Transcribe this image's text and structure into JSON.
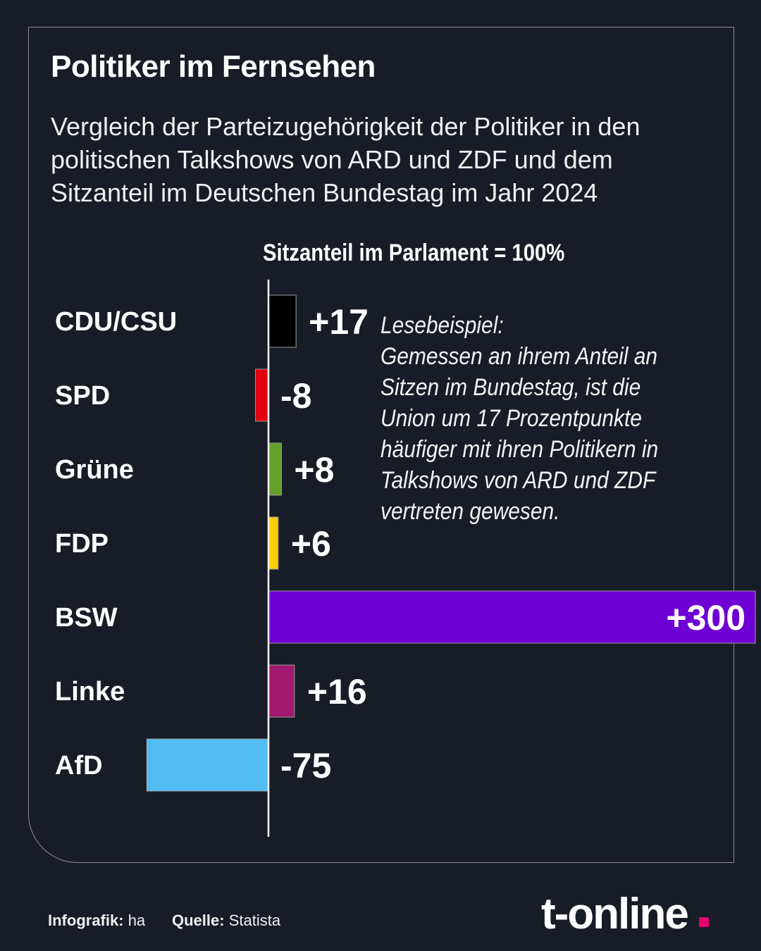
{
  "header": {
    "title": "Politiker im Fernsehen",
    "subtitle": "Vergleich der Parteizugehörigkeit der Politiker in den politischen Talkshows von ARD und ZDF und dem Sitzanteil im Deutschen Bundestag im Jahr 2024"
  },
  "note": {
    "lines": [
      "Lesebeispiel:",
      "Gemessen an ihrem Anteil an",
      "Sitzen im Bundestag, ist die",
      "Union um 17 Prozentpunkte",
      "häufiger mit ihren Politikern in",
      "Talkshows von ARD und ZDF",
      "vertreten gewesen."
    ]
  },
  "chart_data": {
    "type": "bar",
    "orientation": "horizontal",
    "axis_label": "Sitzanteil im Parlament = 100%",
    "categories": [
      "CDU/CSU",
      "SPD",
      "Grüne",
      "FDP",
      "BSW",
      "Linke",
      "AfD"
    ],
    "values": [
      17,
      -8,
      8,
      6,
      300,
      16,
      -75
    ],
    "value_labels": [
      "+17",
      "-8",
      "+8",
      "+6",
      "+300",
      "+16",
      "-75"
    ],
    "colors": [
      "#000000",
      "#e3000f",
      "#64a12d",
      "#ffcc00",
      "#6e00d6",
      "#a0196e",
      "#52bdf4"
    ],
    "xlim": [
      -75,
      300
    ]
  },
  "footer": {
    "infografik_label": "Infografik:",
    "infografik_value": "ha",
    "quelle_label": "Quelle:",
    "quelle_value": "Statista"
  },
  "logo": {
    "text": "t-online"
  },
  "colors": {
    "background": "#181c27",
    "accent": "#e5006d"
  }
}
